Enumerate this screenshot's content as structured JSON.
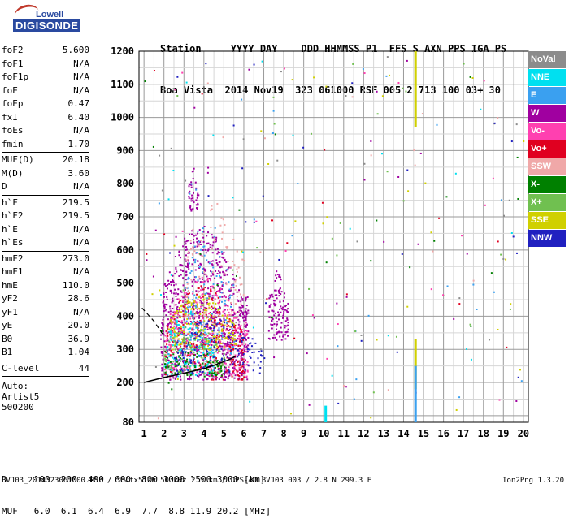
{
  "logo": {
    "brand": "Lowell",
    "product": "DIGISONDE"
  },
  "header": {
    "line1": "Station     YYYY DAY    DDD HHMMSS P1  FFS S AXN PPS IGA PS",
    "line2": "Boa Vista  2014 Nov19  323 061000 RSF 005 2 713 100 03+ 30"
  },
  "params": [
    [
      {
        "label": "foF2",
        "value": "5.600"
      },
      {
        "label": "foF1",
        "value": "N/A"
      },
      {
        "label": "foF1p",
        "value": "N/A"
      },
      {
        "label": "foE",
        "value": "N/A"
      },
      {
        "label": "foEp",
        "value": "0.47"
      },
      {
        "label": "fxI",
        "value": "6.40"
      },
      {
        "label": "foEs",
        "value": "N/A"
      },
      {
        "label": "fmin",
        "value": "1.70"
      }
    ],
    [
      {
        "label": "MUF(D)",
        "value": "20.18"
      },
      {
        "label": "M(D)",
        "value": "3.60"
      },
      {
        "label": "D",
        "value": "N/A"
      }
    ],
    [
      {
        "label": "h`F",
        "value": "219.5"
      },
      {
        "label": "h`F2",
        "value": "219.5"
      },
      {
        "label": "h`E",
        "value": "N/A"
      },
      {
        "label": "h`Es",
        "value": "N/A"
      }
    ],
    [
      {
        "label": "hmF2",
        "value": "273.0"
      },
      {
        "label": "hmF1",
        "value": "N/A"
      },
      {
        "label": "hmE",
        "value": "110.0"
      },
      {
        "label": "yF2",
        "value": "28.6"
      },
      {
        "label": "yF1",
        "value": "N/A"
      },
      {
        "label": "yE",
        "value": "20.0"
      },
      {
        "label": "B0",
        "value": "36.9"
      },
      {
        "label": "B1",
        "value": "1.04"
      }
    ],
    [
      {
        "label": "C-level",
        "value": "44"
      }
    ]
  ],
  "auto": {
    "line1": "Auto:",
    "line2": "Artist5",
    "line3": "500200"
  },
  "legend": [
    {
      "label": "NoVal",
      "color": "#8c8c8c"
    },
    {
      "label": "NNE",
      "color": "#00e0f0"
    },
    {
      "label": "E",
      "color": "#3aa0f0"
    },
    {
      "label": "W",
      "color": "#a000a0"
    },
    {
      "label": "Vo-",
      "color": "#ff40b0"
    },
    {
      "label": "Vo+",
      "color": "#e00020"
    },
    {
      "label": "SSW",
      "color": "#f0a8a8"
    },
    {
      "label": "X-",
      "color": "#008000"
    },
    {
      "label": "X+",
      "color": "#70c050"
    },
    {
      "label": "SSE",
      "color": "#d0d000"
    },
    {
      "label": "NNW",
      "color": "#2020c0"
    }
  ],
  "footer": {
    "line1": "D     100  200  400  600  800 1000 1500 3000 [km]",
    "line2": "MUF   6.0  6.1  6.4  6.9  7.7  8.8 11.9 20.2 [MHz]",
    "line3": "BVJ03_2014323061000.RSF / 384fx512h 50 kHz 2.5 km / DPS-4D BVJ03 003 / 2.8 N 299.3 E",
    "version": "Ion2Png 1.3.20"
  },
  "chart_data": {
    "type": "scatter",
    "title": "",
    "xlabel": "",
    "ylabel": "",
    "xlim": [
      0.75,
      20.25
    ],
    "ylim": [
      80,
      1200
    ],
    "x_ticks": [
      1,
      2,
      3,
      4,
      5,
      6,
      7,
      8,
      9,
      10,
      11,
      12,
      13,
      14,
      15,
      16,
      17,
      18,
      19,
      20
    ],
    "y_ticks": [
      80,
      200,
      300,
      400,
      500,
      600,
      700,
      800,
      900,
      1000,
      1100,
      1200
    ],
    "grid": true,
    "legend_position": "right",
    "trace_F2": {
      "freq_mhz": [
        1.0,
        2.0,
        3.0,
        4.0,
        4.5,
        5.0,
        5.3,
        5.6
      ],
      "height_km": [
        200,
        215,
        228,
        242,
        252,
        263,
        270,
        280
      ]
    },
    "dashed_trace": {
      "freq_mhz": [
        0.9,
        1.5,
        2.0
      ],
      "height_km": [
        425,
        385,
        340
      ]
    },
    "clusters": [
      {
        "series": "W",
        "x": [
          1.8,
          6.2
        ],
        "y": [
          210,
          680
        ],
        "n": 900
      },
      {
        "series": "Vo-",
        "x": [
          2.0,
          6.2
        ],
        "y": [
          220,
          520
        ],
        "n": 300
      },
      {
        "series": "Vo+",
        "x": [
          2.0,
          6.0
        ],
        "y": [
          210,
          500
        ],
        "n": 260
      },
      {
        "series": "SSE",
        "x": [
          2.2,
          5.6
        ],
        "y": [
          300,
          470
        ],
        "n": 220
      },
      {
        "series": "NNE",
        "x": [
          2.0,
          4.5
        ],
        "y": [
          220,
          420
        ],
        "n": 150
      },
      {
        "series": "E",
        "x": [
          3.0,
          5.5
        ],
        "y": [
          280,
          700
        ],
        "n": 120
      },
      {
        "series": "X+",
        "x": [
          2.0,
          5.0
        ],
        "y": [
          230,
          380
        ],
        "n": 120
      },
      {
        "series": "X-",
        "x": [
          2.0,
          5.0
        ],
        "y": [
          220,
          320
        ],
        "n": 80
      },
      {
        "series": "NNW",
        "x": [
          2.5,
          7.0
        ],
        "y": [
          230,
          400
        ],
        "n": 140
      },
      {
        "series": "SSW",
        "x": [
          3.0,
          6.0
        ],
        "y": [
          400,
          750
        ],
        "n": 100
      },
      {
        "series": "W",
        "x": [
          7.2,
          8.2
        ],
        "y": [
          330,
          540
        ],
        "n": 120
      },
      {
        "series": "W",
        "x": [
          3.2,
          3.7
        ],
        "y": [
          720,
          850
        ],
        "n": 40
      }
    ],
    "vertical_spikes": [
      {
        "series": "SSE",
        "x": 14.6,
        "y": [
          970,
          1200
        ]
      },
      {
        "series": "SSE",
        "x": 14.6,
        "y": [
          180,
          330
        ]
      },
      {
        "series": "E",
        "x": 14.6,
        "y": [
          80,
          250
        ]
      },
      {
        "series": "NNE",
        "x": 10.1,
        "y": [
          80,
          130
        ]
      }
    ]
  }
}
